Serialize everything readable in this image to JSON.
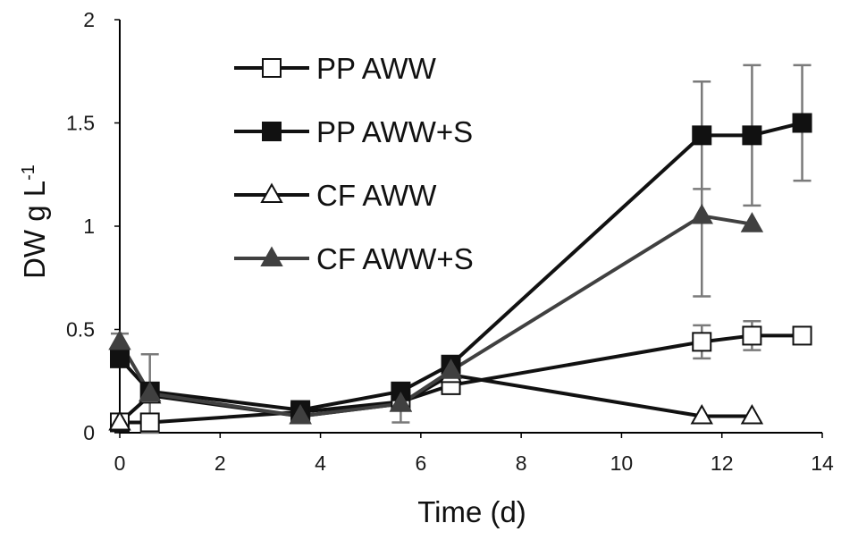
{
  "chart_data": {
    "type": "line",
    "xlabel": "Time (d)",
    "ylabel": {
      "main": "DW g L",
      "sup": "-1"
    },
    "xlim": [
      0,
      14
    ],
    "ylim": [
      0,
      2
    ],
    "xticks": [
      0,
      2,
      4,
      6,
      8,
      10,
      12,
      14
    ],
    "yticks": [
      0,
      0.5,
      1,
      1.5,
      2
    ],
    "xtick_labels": [
      "0",
      "2",
      "4",
      "6",
      "8",
      "10",
      "12",
      "14"
    ],
    "ytick_labels": [
      "0",
      "0.5",
      "1",
      "1.5",
      "2"
    ],
    "grid": false,
    "legend_position": "top-left",
    "series": [
      {
        "name": "PP AWW",
        "marker": "square-open",
        "color": "#111111",
        "x": [
          0,
          0.6,
          3.6,
          5.6,
          6.6,
          11.6,
          12.6,
          13.6
        ],
        "y": [
          0.05,
          0.05,
          0.1,
          0.15,
          0.23,
          0.44,
          0.47,
          0.47
        ],
        "error": [
          0,
          0,
          0,
          0,
          0,
          0.08,
          0.07,
          0
        ]
      },
      {
        "name": "PP AWW+S",
        "marker": "square-filled",
        "color": "#111111",
        "x": [
          0,
          0.6,
          3.6,
          5.6,
          6.6,
          11.6,
          12.6,
          13.6
        ],
        "y": [
          0.36,
          0.2,
          0.11,
          0.2,
          0.33,
          1.44,
          1.44,
          1.5
        ],
        "error": [
          0,
          0,
          0,
          0,
          0,
          0.26,
          0.34,
          0.28
        ]
      },
      {
        "name": "CF AWW",
        "marker": "triangle-open",
        "color": "#111111",
        "x": [
          0,
          0.6,
          3.6,
          5.6,
          6.6,
          11.6,
          12.6
        ],
        "y": [
          0.05,
          0.18,
          0.08,
          0.14,
          0.28,
          0.08,
          0.08
        ],
        "error": [
          0,
          0,
          0,
          0,
          0,
          0,
          0
        ]
      },
      {
        "name": "CF AWW+S",
        "marker": "triangle-filled",
        "color": "#404040",
        "x": [
          0,
          0.6,
          3.6,
          5.6,
          6.6,
          11.6,
          12.6
        ],
        "y": [
          0.44,
          0.19,
          0.08,
          0.14,
          0.3,
          1.05,
          1.01
        ],
        "error": [
          0.04,
          0.19,
          0,
          0.09,
          0,
          0.39,
          0
        ]
      }
    ]
  }
}
